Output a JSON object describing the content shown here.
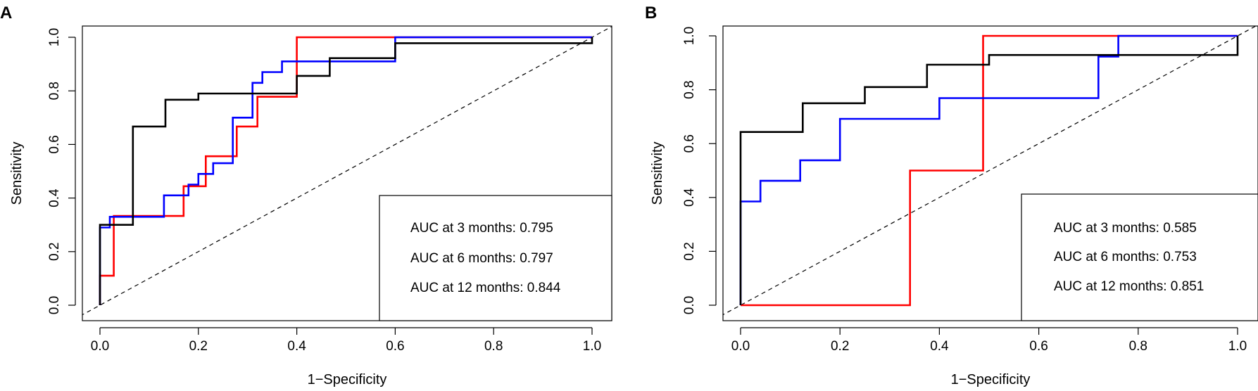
{
  "chart_data": [
    {
      "type": "line",
      "panel_label": "A",
      "xlabel": "1−Specificity",
      "ylabel": "Sensitivity",
      "xlim": [
        -0.04,
        1.04
      ],
      "ylim": [
        -0.04,
        1.04
      ],
      "xticks": [
        0.0,
        0.2,
        0.4,
        0.6,
        0.8,
        1.0
      ],
      "xtick_labels": [
        "0.0",
        "0.2",
        "0.4",
        "0.6",
        "0.8",
        "1.0"
      ],
      "yticks": [
        0.0,
        0.2,
        0.4,
        0.6,
        0.8,
        1.0
      ],
      "ytick_labels": [
        "0.0",
        "0.2",
        "0.4",
        "0.6",
        "0.8",
        "1.0"
      ],
      "reference_line": {
        "from": [
          0,
          0
        ],
        "to": [
          1,
          1
        ],
        "style": "dashed"
      },
      "legend": {
        "position": "bottom-right",
        "entries": [
          "AUC at 3 months: 0.795",
          "AUC at 6 months: 0.797",
          "AUC at 12 months: 0.844"
        ]
      },
      "series": [
        {
          "name": "3 months",
          "color": "#ff0000",
          "x": [
            0,
            0,
            0.028,
            0.028,
            0.17,
            0.17,
            0.215,
            0.215,
            0.278,
            0.278,
            0.32,
            0.32,
            0.4,
            0.4,
            1.0
          ],
          "y": [
            0,
            0.11,
            0.11,
            0.333,
            0.333,
            0.444,
            0.444,
            0.556,
            0.556,
            0.667,
            0.667,
            0.778,
            0.778,
            1.0,
            1.0
          ]
        },
        {
          "name": "6 months",
          "color": "#0000ff",
          "x": [
            0,
            0,
            0.02,
            0.02,
            0.13,
            0.13,
            0.18,
            0.18,
            0.2,
            0.2,
            0.23,
            0.23,
            0.27,
            0.27,
            0.31,
            0.31,
            0.33,
            0.33,
            0.37,
            0.37,
            0.6,
            0.6,
            1.0
          ],
          "y": [
            0,
            0.29,
            0.29,
            0.33,
            0.33,
            0.41,
            0.41,
            0.45,
            0.45,
            0.49,
            0.49,
            0.53,
            0.53,
            0.7,
            0.7,
            0.83,
            0.83,
            0.87,
            0.87,
            0.91,
            0.91,
            1.0,
            1.0
          ]
        },
        {
          "name": "12 months",
          "color": "#000000",
          "x": [
            0,
            0,
            0.067,
            0.067,
            0.133,
            0.133,
            0.2,
            0.2,
            0.4,
            0.4,
            0.467,
            0.467,
            0.6,
            0.6,
            1.0,
            1.0
          ],
          "y": [
            0,
            0.3,
            0.3,
            0.667,
            0.667,
            0.767,
            0.767,
            0.79,
            0.79,
            0.856,
            0.856,
            0.922,
            0.922,
            0.978,
            0.978,
            1.0
          ]
        }
      ]
    },
    {
      "type": "line",
      "panel_label": "B",
      "xlabel": "1−Specificity",
      "ylabel": "Sensitivity",
      "xlim": [
        -0.04,
        1.04
      ],
      "ylim": [
        -0.04,
        1.04
      ],
      "xticks": [
        0.0,
        0.2,
        0.4,
        0.6,
        0.8,
        1.0
      ],
      "xtick_labels": [
        "0.0",
        "0.2",
        "0.4",
        "0.6",
        "0.8",
        "1.0"
      ],
      "yticks": [
        0.0,
        0.2,
        0.4,
        0.6,
        0.8,
        1.0
      ],
      "ytick_labels": [
        "0.0",
        "0.2",
        "0.4",
        "0.6",
        "0.8",
        "1.0"
      ],
      "reference_line": {
        "from": [
          0,
          0
        ],
        "to": [
          1,
          1
        ],
        "style": "dashed"
      },
      "legend": {
        "position": "bottom-right",
        "entries": [
          "AUC at 3 months: 0.585",
          "AUC at 6 months: 0.753",
          "AUC at 12 months: 0.851"
        ]
      },
      "series": [
        {
          "name": "3 months",
          "color": "#ff0000",
          "x": [
            0,
            0.341,
            0.341,
            0.488,
            0.488,
            1.0
          ],
          "y": [
            0,
            0,
            0.5,
            0.5,
            1.0,
            1.0
          ]
        },
        {
          "name": "6 months",
          "color": "#0000ff",
          "x": [
            0,
            0,
            0.04,
            0.04,
            0.12,
            0.12,
            0.2,
            0.2,
            0.4,
            0.4,
            0.72,
            0.72,
            0.76,
            0.76,
            1.0
          ],
          "y": [
            0,
            0.385,
            0.385,
            0.462,
            0.462,
            0.538,
            0.538,
            0.692,
            0.692,
            0.769,
            0.769,
            0.923,
            0.923,
            1.0,
            1.0
          ]
        },
        {
          "name": "12 months",
          "color": "#000000",
          "x": [
            0,
            0,
            0.125,
            0.125,
            0.25,
            0.25,
            0.375,
            0.375,
            0.5,
            0.5,
            1.0,
            1.0
          ],
          "y": [
            0,
            0.643,
            0.643,
            0.75,
            0.75,
            0.81,
            0.81,
            0.893,
            0.893,
            0.929,
            0.929,
            1.0
          ]
        }
      ]
    }
  ]
}
